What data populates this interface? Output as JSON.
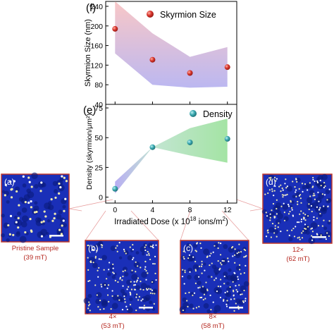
{
  "chart_data": [
    {
      "panel": "(f)",
      "type": "scatter",
      "x": [
        0,
        4,
        8,
        12
      ],
      "y": [
        194,
        131,
        104,
        116
      ],
      "band_upper": [
        250,
        185,
        137,
        157
      ],
      "band_lower": [
        144,
        80,
        74,
        76
      ],
      "xlim": [
        -1,
        13
      ],
      "ylim": [
        40,
        250
      ],
      "yticks": [
        40,
        80,
        120,
        160,
        200,
        240
      ],
      "ylabel": "Skyrmion Size (nm)",
      "legend": "Skyrmion Size",
      "marker_color": "#d9342b",
      "band_colors": [
        "#f6c2c2",
        "#b9b5ef"
      ]
    },
    {
      "panel": "(e)",
      "type": "scatter",
      "x": [
        0,
        4,
        8,
        12
      ],
      "y": [
        7,
        42,
        46,
        49
      ],
      "band_upper": [
        13,
        42,
        58,
        66
      ],
      "band_lower": [
        3,
        42,
        35,
        29
      ],
      "xlim": [
        -1,
        13
      ],
      "ylim": [
        -5,
        78
      ],
      "yticks": [
        0,
        25,
        50,
        75
      ],
      "xticks": [
        0,
        4,
        8,
        12
      ],
      "ylabel": "Density (skyrmion/μm²)",
      "legend": "Density",
      "marker_color": "#3aa8b0",
      "band_colors": [
        "#b7aef0",
        "#a4e2a8"
      ]
    }
  ],
  "xlabel": {
    "prefix": "Irradiated Dose (x 10",
    "exp": "18",
    "suffix": " ions/m",
    "suffix_exp": "2",
    "close": ")"
  },
  "panels": {
    "f": "(f)",
    "e": "(e)"
  },
  "images": [
    {
      "label": "(a)",
      "caption1": "Pristine Sample",
      "caption2": "(39 mT)"
    },
    {
      "label": "(b)",
      "caption1": "4×",
      "caption2": "(53 mT)"
    },
    {
      "label": "(c)",
      "caption1": "8×",
      "caption2": "(58 mT)"
    },
    {
      "label": "(d)",
      "caption1": "12×",
      "caption2": "(62 mT)"
    }
  ],
  "colors": {
    "frame": "#c0392b",
    "connector": "#e8a0a0",
    "micrograph_bg": "#1a2fb8"
  }
}
